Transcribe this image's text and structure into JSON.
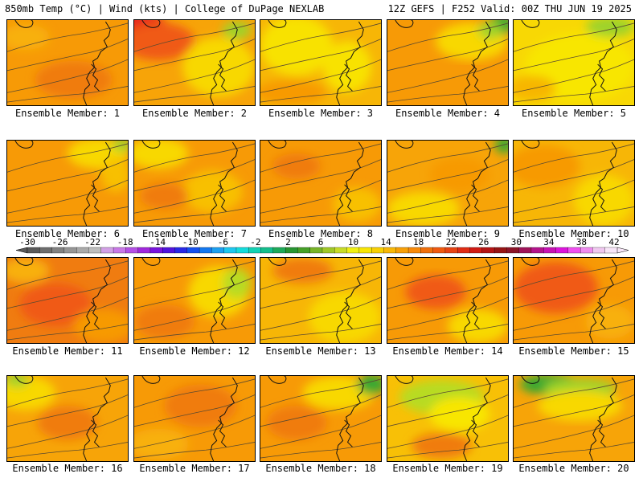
{
  "header": {
    "left": "850mb Temp (°C) | Wind (kts) | College of DuPage NEXLAB",
    "right": "12Z GEFS | F252 Valid: 00Z THU JUN 19 2025"
  },
  "member_label_prefix": "Ensemble Member:",
  "members": [
    {
      "id": 1,
      "label": "Ensemble Member: 1",
      "base": "#f79a06",
      "blobs": [
        [
          "#f07c10",
          0.55,
          0.7,
          0.32,
          0.22
        ],
        [
          "#f8b010",
          0.15,
          0.2,
          0.2,
          0.15
        ]
      ]
    },
    {
      "id": 2,
      "label": "Ensemble Member: 2",
      "base": "#f7a408",
      "blobs": [
        [
          "#e8241c",
          0.05,
          0.08,
          0.22,
          0.18
        ],
        [
          "#f05a14",
          0.2,
          0.25,
          0.3,
          0.22
        ],
        [
          "#f8d804",
          0.7,
          0.55,
          0.3,
          0.35
        ],
        [
          "#9ed32a",
          0.85,
          0.12,
          0.12,
          0.1
        ]
      ]
    },
    {
      "id": 3,
      "label": "Ensemble Member: 3",
      "base": "#f7b606",
      "blobs": [
        [
          "#f8e204",
          0.3,
          0.3,
          0.3,
          0.35
        ],
        [
          "#f8e204",
          0.72,
          0.55,
          0.2,
          0.3
        ],
        [
          "#f79a06",
          0.25,
          0.85,
          0.3,
          0.15
        ]
      ]
    },
    {
      "id": 4,
      "label": "Ensemble Member: 4",
      "base": "#f79a06",
      "blobs": [
        [
          "#f8d804",
          0.7,
          0.25,
          0.3,
          0.22
        ],
        [
          "#38a832",
          0.95,
          0.05,
          0.1,
          0.12
        ],
        [
          "#9ed32a",
          0.85,
          0.12,
          0.1,
          0.1
        ]
      ]
    },
    {
      "id": 5,
      "label": "Ensemble Member: 5",
      "base": "#f8d804",
      "blobs": [
        [
          "#f8e604",
          0.55,
          0.55,
          0.45,
          0.4
        ],
        [
          "#9ed32a",
          0.8,
          0.08,
          0.2,
          0.12
        ],
        [
          "#f7b606",
          0.15,
          0.8,
          0.2,
          0.15
        ]
      ]
    },
    {
      "id": 6,
      "label": "Ensemble Member: 6",
      "base": "#f79a06",
      "blobs": [
        [
          "#f8d804",
          0.75,
          0.15,
          0.25,
          0.18
        ],
        [
          "#f8c006",
          0.9,
          0.4,
          0.12,
          0.2
        ],
        [
          "#9ed32a",
          0.95,
          0.05,
          0.08,
          0.08
        ]
      ]
    },
    {
      "id": 7,
      "label": "Ensemble Member: 7",
      "base": "#f79a06",
      "blobs": [
        [
          "#f8d804",
          0.2,
          0.15,
          0.25,
          0.18
        ],
        [
          "#f8c006",
          0.65,
          0.6,
          0.25,
          0.25
        ],
        [
          "#f07c10",
          0.25,
          0.65,
          0.2,
          0.15
        ]
      ]
    },
    {
      "id": 8,
      "label": "Ensemble Member: 8",
      "base": "#f79a06",
      "blobs": [
        [
          "#f8c006",
          0.8,
          0.75,
          0.2,
          0.2
        ],
        [
          "#f07c10",
          0.3,
          0.3,
          0.2,
          0.15
        ]
      ]
    },
    {
      "id": 9,
      "label": "Ensemble Member: 9",
      "base": "#f7a408",
      "blobs": [
        [
          "#f8d804",
          0.3,
          0.8,
          0.3,
          0.2
        ],
        [
          "#38a832",
          0.97,
          0.05,
          0.08,
          0.1
        ],
        [
          "#f79a06",
          0.6,
          0.4,
          0.25,
          0.2
        ]
      ]
    },
    {
      "id": 10,
      "label": "Ensemble Member: 10",
      "base": "#f7b606",
      "blobs": [
        [
          "#f8d804",
          0.75,
          0.7,
          0.25,
          0.3
        ],
        [
          "#f79a06",
          0.25,
          0.3,
          0.3,
          0.25
        ]
      ]
    },
    {
      "id": 11,
      "label": "Ensemble Member: 11",
      "base": "#f07c10",
      "blobs": [
        [
          "#f05a14",
          0.4,
          0.55,
          0.3,
          0.25
        ],
        [
          "#f79a06",
          0.8,
          0.8,
          0.25,
          0.2
        ],
        [
          "#f8b010",
          0.15,
          0.15,
          0.2,
          0.15
        ]
      ]
    },
    {
      "id": 12,
      "label": "Ensemble Member: 12",
      "base": "#f79a06",
      "blobs": [
        [
          "#f8d804",
          0.7,
          0.4,
          0.25,
          0.3
        ],
        [
          "#b8db24",
          0.85,
          0.3,
          0.12,
          0.18
        ],
        [
          "#f07c10",
          0.25,
          0.75,
          0.25,
          0.2
        ]
      ]
    },
    {
      "id": 13,
      "label": "Ensemble Member: 13",
      "base": "#f7b606",
      "blobs": [
        [
          "#f8d804",
          0.7,
          0.7,
          0.3,
          0.3
        ],
        [
          "#f07c10",
          0.35,
          0.15,
          0.25,
          0.15
        ]
      ]
    },
    {
      "id": 14,
      "label": "Ensemble Member: 14",
      "base": "#f79a06",
      "blobs": [
        [
          "#f05a14",
          0.4,
          0.4,
          0.25,
          0.2
        ],
        [
          "#f8d804",
          0.75,
          0.8,
          0.25,
          0.2
        ]
      ]
    },
    {
      "id": 15,
      "label": "Ensemble Member: 15",
      "base": "#f79a06",
      "blobs": [
        [
          "#f05a14",
          0.35,
          0.35,
          0.35,
          0.3
        ],
        [
          "#f8b010",
          0.8,
          0.75,
          0.2,
          0.2
        ]
      ]
    },
    {
      "id": 16,
      "label": "Ensemble Member: 16",
      "base": "#f7a408",
      "blobs": [
        [
          "#f8d804",
          0.15,
          0.2,
          0.25,
          0.2
        ],
        [
          "#9ed32a",
          0.08,
          0.05,
          0.1,
          0.08
        ],
        [
          "#f07c10",
          0.5,
          0.55,
          0.25,
          0.2
        ]
      ]
    },
    {
      "id": 17,
      "label": "Ensemble Member: 17",
      "base": "#f79a06",
      "blobs": [
        [
          "#f07c10",
          0.55,
          0.35,
          0.3,
          0.25
        ],
        [
          "#f8b010",
          0.2,
          0.8,
          0.25,
          0.18
        ]
      ]
    },
    {
      "id": 18,
      "label": "Ensemble Member: 18",
      "base": "#f79a06",
      "blobs": [
        [
          "#f8d804",
          0.65,
          0.2,
          0.3,
          0.2
        ],
        [
          "#38a832",
          0.92,
          0.1,
          0.12,
          0.12
        ],
        [
          "#f07c10",
          0.3,
          0.55,
          0.25,
          0.2
        ]
      ]
    },
    {
      "id": 19,
      "label": "Ensemble Member: 19",
      "base": "#f8c006",
      "blobs": [
        [
          "#b8db24",
          0.45,
          0.25,
          0.35,
          0.2
        ],
        [
          "#f8e604",
          0.6,
          0.45,
          0.25,
          0.2
        ],
        [
          "#f07c10",
          0.45,
          0.82,
          0.25,
          0.15
        ]
      ]
    },
    {
      "id": 20,
      "label": "Ensemble Member: 20",
      "base": "#f7a408",
      "blobs": [
        [
          "#38a832",
          0.3,
          0.1,
          0.25,
          0.12
        ],
        [
          "#9ed32a",
          0.55,
          0.15,
          0.3,
          0.12
        ],
        [
          "#f8d804",
          0.55,
          0.35,
          0.35,
          0.18
        ]
      ]
    }
  ],
  "colorbar": {
    "labels": [
      "-30",
      "-26",
      "-22",
      "-18",
      "-14",
      "-10",
      "-6",
      "-2",
      "2",
      "6",
      "10",
      "14",
      "18",
      "22",
      "26",
      "30",
      "34",
      "38",
      "42"
    ],
    "colors": [
      "#5a5a5a",
      "#6e6e6e",
      "#828282",
      "#969696",
      "#aaaaaa",
      "#bebebe",
      "#d2a0e6",
      "#c878e6",
      "#b450e6",
      "#a028dc",
      "#7814dc",
      "#5014dc",
      "#2828e6",
      "#1450f0",
      "#1478f0",
      "#1ea0f0",
      "#1ec8f0",
      "#14dcdc",
      "#14d2b4",
      "#14be8c",
      "#1eaa5a",
      "#289632",
      "#46a028",
      "#78b428",
      "#a0c828",
      "#c8dc28",
      "#f0f014",
      "#f8e604",
      "#f8d004",
      "#f8b808",
      "#f8a008",
      "#f88a0a",
      "#f0700c",
      "#f05a10",
      "#e84414",
      "#e02c14",
      "#d01c14",
      "#b41414",
      "#961414",
      "#8c1428",
      "#a0145a",
      "#b4148c",
      "#c814b4",
      "#dc14dc",
      "#f050f0",
      "#f08cf0",
      "#f0c8f0",
      "#f8e6f8"
    ]
  }
}
